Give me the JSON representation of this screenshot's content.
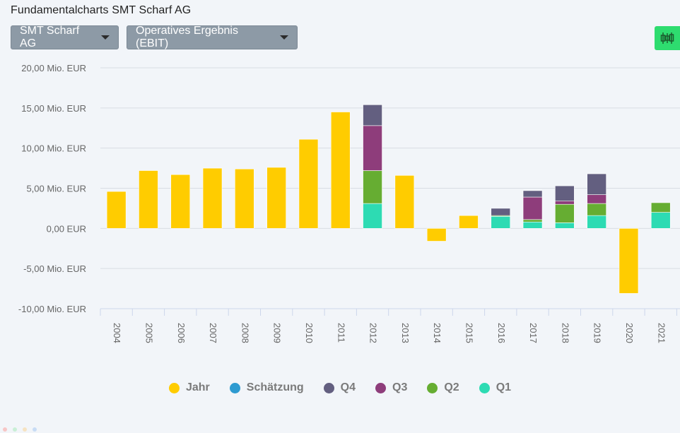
{
  "page": {
    "title": "Fundamentalcharts SMT Scharf AG"
  },
  "controls": {
    "company": "SMT Scharf AG",
    "metric": "Operatives Ergebnis (EBIT)"
  },
  "colors": {
    "jahr": "#ffcc00",
    "schaetzung": "#2e9bd1",
    "q4": "#635f80",
    "q3": "#8e3d7b",
    "q2": "#66ad32",
    "q1": "#2ddbb3",
    "button": "#2edc6f"
  },
  "legend": [
    {
      "label": "Jahr",
      "color": "#ffcc00"
    },
    {
      "label": "Schätzung",
      "color": "#2e9bd1"
    },
    {
      "label": "Q4",
      "color": "#635f80"
    },
    {
      "label": "Q3",
      "color": "#8e3d7b"
    },
    {
      "label": "Q2",
      "color": "#66ad32"
    },
    {
      "label": "Q1",
      "color": "#2ddbb3"
    }
  ],
  "chart_data": {
    "type": "bar",
    "stacked": true,
    "categories": [
      "2004",
      "2005",
      "2006",
      "2007",
      "2008",
      "2009",
      "2010",
      "2011",
      "2012",
      "2013",
      "2014",
      "2015",
      "2016",
      "2017",
      "2018",
      "2019",
      "2020",
      "2021"
    ],
    "ylim": [
      -10,
      20
    ],
    "yticks": [
      20,
      15,
      10,
      5,
      0,
      -5,
      -10
    ],
    "ytick_labels": [
      "20,00 Mio. EUR",
      "15,00 Mio. EUR",
      "10,00 Mio. EUR",
      "5,00 Mio. EUR",
      "0,00 EUR",
      "-5,00 Mio. EUR",
      "-10,00 Mio. EUR"
    ],
    "grid": true,
    "legend_position": "bottom",
    "series": [
      {
        "name": "Jahr",
        "values": [
          4.6,
          7.2,
          6.7,
          7.5,
          7.4,
          7.6,
          11.1,
          14.5,
          null,
          6.6,
          -1.6,
          1.6,
          null,
          null,
          null,
          null,
          -8.1,
          null
        ]
      },
      {
        "name": "Schätzung",
        "values": [
          null,
          null,
          null,
          null,
          null,
          null,
          null,
          null,
          null,
          null,
          null,
          null,
          null,
          null,
          null,
          null,
          null,
          null
        ]
      },
      {
        "name": "Q1",
        "values": [
          null,
          null,
          null,
          null,
          null,
          null,
          null,
          null,
          3.1,
          null,
          null,
          null,
          1.5,
          0.8,
          0.7,
          1.6,
          null,
          2.0
        ]
      },
      {
        "name": "Q2",
        "values": [
          null,
          null,
          null,
          null,
          null,
          null,
          null,
          null,
          4.1,
          null,
          null,
          null,
          0.1,
          0.3,
          2.3,
          1.5,
          null,
          1.2
        ]
      },
      {
        "name": "Q3",
        "values": [
          null,
          null,
          null,
          null,
          null,
          null,
          null,
          null,
          5.6,
          null,
          null,
          null,
          0.0,
          2.8,
          0.4,
          1.1,
          null,
          null
        ]
      },
      {
        "name": "Q4",
        "values": [
          null,
          null,
          null,
          null,
          null,
          null,
          null,
          null,
          2.6,
          null,
          null,
          null,
          0.9,
          0.8,
          1.9,
          2.6,
          null,
          null
        ]
      }
    ]
  }
}
